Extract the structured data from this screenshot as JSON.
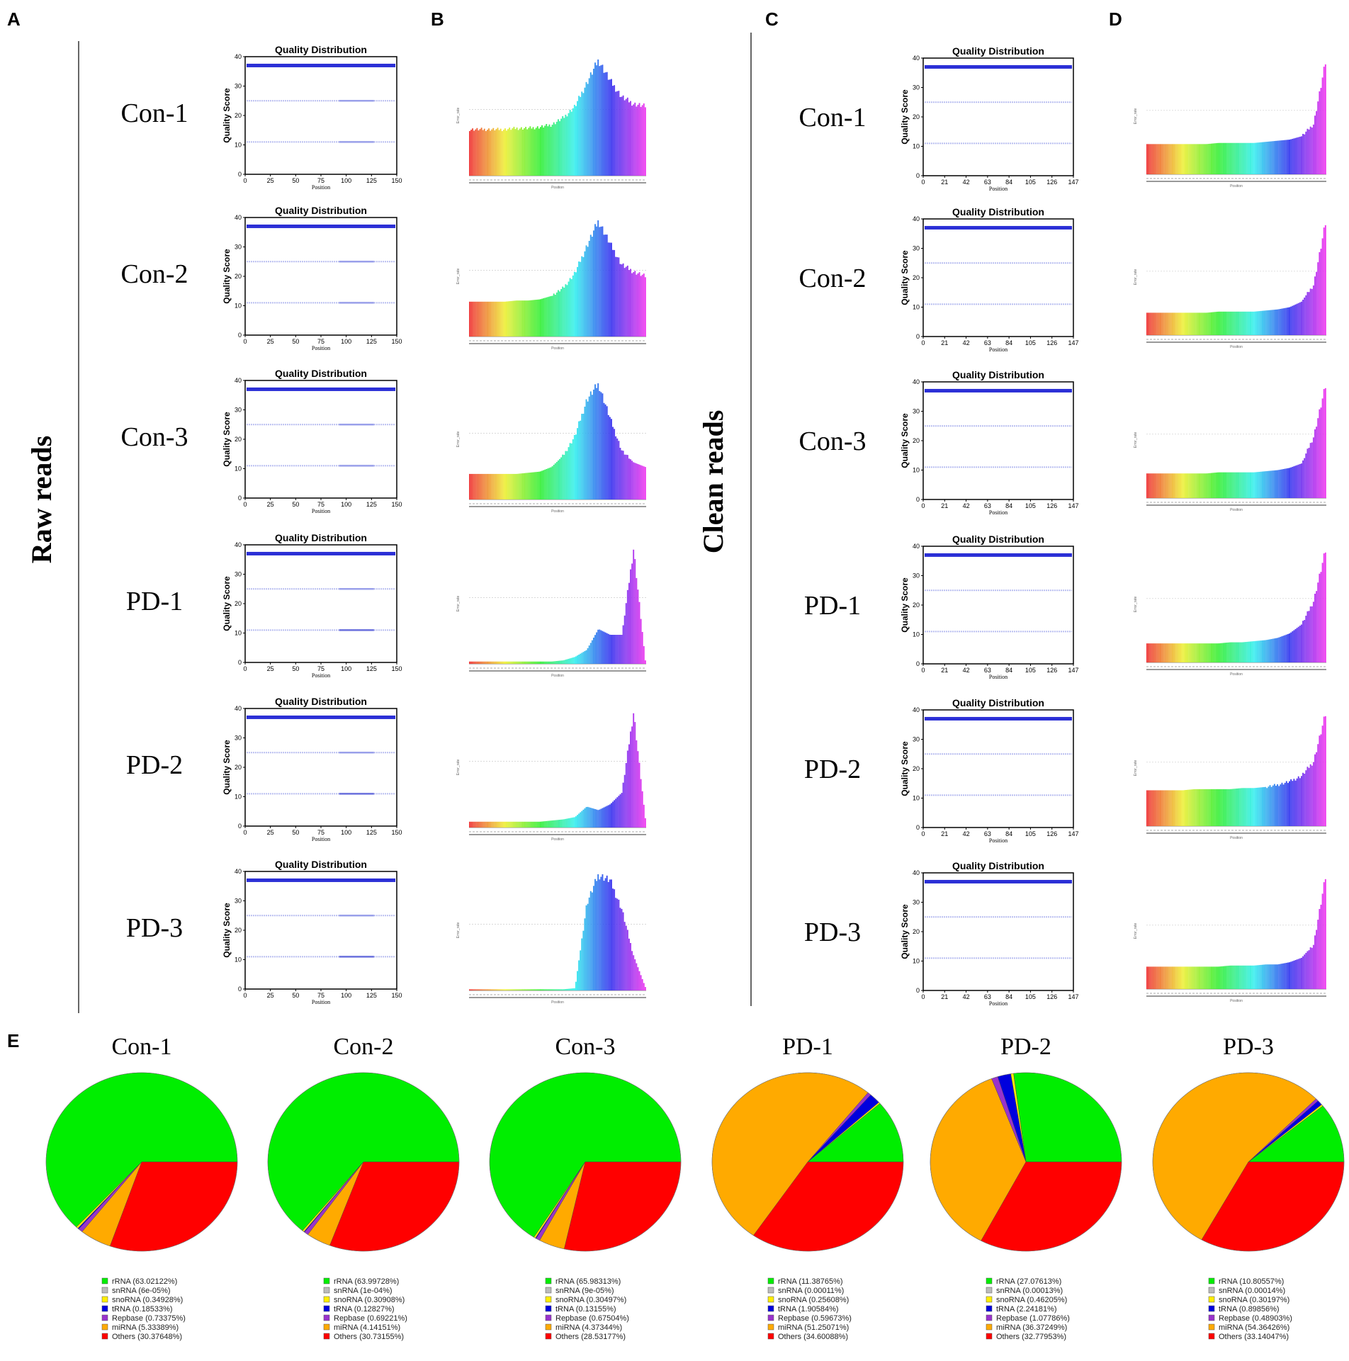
{
  "panel_letters": {
    "A": "A",
    "B": "B",
    "C": "C",
    "D": "D",
    "E": "E"
  },
  "side_labels": {
    "raw": "Raw reads",
    "clean": "Clean reads"
  },
  "samples": [
    "Con-1",
    "Con-2",
    "Con-3",
    "PD-1",
    "PD-2",
    "PD-3"
  ],
  "qd_common": {
    "title": "Quality Distribution",
    "ylabel": "Quality Score",
    "xlabel": "Position",
    "yticks": [
      "0",
      "10",
      "20",
      "30",
      "40"
    ],
    "raw_xticks": [
      "0",
      "25",
      "50",
      "75",
      "100",
      "125",
      "150"
    ],
    "clean_xticks": [
      "0",
      "21",
      "42",
      "63",
      "84",
      "105",
      "126",
      "147"
    ]
  },
  "err_common": {
    "ylabel": "Error_rate",
    "xlabel": "Position"
  },
  "chart_data": [
    {
      "type": "scatter",
      "panel": "A",
      "title": "Quality Distribution",
      "xlabel": "Position",
      "ylabel": "Quality Score",
      "xlim": [
        0,
        150
      ],
      "ylim": [
        0,
        40
      ],
      "samples": [
        "Con-1",
        "Con-2",
        "Con-3",
        "PD-1",
        "PD-2",
        "PD-3"
      ],
      "quality_bands": [
        37,
        25,
        11
      ]
    },
    {
      "type": "bar",
      "panel": "B",
      "xlabel": "Position",
      "ylabel": "Error_rate",
      "samples": [
        {
          "name": "Con-1",
          "profile": [
            0.4,
            0.4,
            0.4,
            0.4,
            0.41,
            0.41,
            0.42,
            0.44,
            0.5,
            0.6,
            0.8,
            1.0,
            0.82,
            0.68,
            0.62,
            0.6
          ]
        },
        {
          "name": "Con-2",
          "profile": [
            0.3,
            0.3,
            0.3,
            0.3,
            0.31,
            0.31,
            0.32,
            0.35,
            0.42,
            0.55,
            0.78,
            1.0,
            0.8,
            0.62,
            0.56,
            0.52
          ]
        },
        {
          "name": "Con-3",
          "profile": [
            0.22,
            0.22,
            0.22,
            0.22,
            0.22,
            0.23,
            0.24,
            0.28,
            0.38,
            0.55,
            0.86,
            1.0,
            0.7,
            0.42,
            0.32,
            0.28
          ]
        },
        {
          "name": "PD-1",
          "profile": [
            0.02,
            0.02,
            0.02,
            0.02,
            0.02,
            0.02,
            0.02,
            0.02,
            0.03,
            0.06,
            0.12,
            0.3,
            0.25,
            0.25,
            1.0,
            0.03
          ]
        },
        {
          "name": "PD-2",
          "profile": [
            0.05,
            0.05,
            0.05,
            0.05,
            0.05,
            0.05,
            0.05,
            0.06,
            0.07,
            0.09,
            0.18,
            0.15,
            0.2,
            0.3,
            1.0,
            0.08
          ]
        },
        {
          "name": "PD-3",
          "profile": [
            0.01,
            0.01,
            0.01,
            0.01,
            0.01,
            0.01,
            0.01,
            0.01,
            0.01,
            0.02,
            0.75,
            1.0,
            0.95,
            0.7,
            0.3,
            0.03
          ]
        }
      ]
    },
    {
      "type": "scatter",
      "panel": "C",
      "title": "Quality Distribution",
      "xlabel": "Position",
      "ylabel": "Quality Score",
      "xlim": [
        0,
        147
      ],
      "ylim": [
        0,
        40
      ],
      "samples": [
        "Con-1",
        "Con-2",
        "Con-3",
        "PD-1",
        "PD-2",
        "PD-3"
      ],
      "quality_bands": [
        37,
        25,
        11
      ]
    },
    {
      "type": "bar",
      "panel": "D",
      "xlabel": "Position",
      "ylabel": "Error_rate",
      "samples": [
        {
          "name": "Con-1",
          "profile": [
            0.27,
            0.27,
            0.27,
            0.27,
            0.27,
            0.27,
            0.28,
            0.28,
            0.28,
            0.28,
            0.29,
            0.3,
            0.31,
            0.34,
            0.45,
            1.0
          ]
        },
        {
          "name": "Con-2",
          "profile": [
            0.2,
            0.2,
            0.2,
            0.2,
            0.2,
            0.2,
            0.21,
            0.21,
            0.21,
            0.21,
            0.22,
            0.23,
            0.25,
            0.3,
            0.45,
            1.0
          ]
        },
        {
          "name": "Con-3",
          "profile": [
            0.22,
            0.22,
            0.22,
            0.22,
            0.22,
            0.22,
            0.23,
            0.23,
            0.23,
            0.23,
            0.24,
            0.25,
            0.27,
            0.31,
            0.55,
            1.0
          ]
        },
        {
          "name": "PD-1",
          "profile": [
            0.17,
            0.17,
            0.17,
            0.17,
            0.17,
            0.17,
            0.17,
            0.18,
            0.18,
            0.19,
            0.2,
            0.22,
            0.26,
            0.34,
            0.55,
            1.0
          ]
        },
        {
          "name": "PD-2",
          "profile": [
            0.32,
            0.32,
            0.32,
            0.32,
            0.33,
            0.33,
            0.33,
            0.33,
            0.34,
            0.34,
            0.35,
            0.37,
            0.4,
            0.45,
            0.58,
            1.0
          ]
        },
        {
          "name": "PD-3",
          "profile": [
            0.2,
            0.2,
            0.2,
            0.2,
            0.2,
            0.2,
            0.2,
            0.21,
            0.21,
            0.21,
            0.22,
            0.22,
            0.24,
            0.28,
            0.4,
            1.0
          ]
        }
      ]
    },
    {
      "type": "pie",
      "panel": "E",
      "categories": [
        "rRNA",
        "snRNA",
        "snoRNA",
        "tRNA",
        "Repbase",
        "miRNA",
        "Others"
      ],
      "colors": [
        "#00ee00",
        "#bbbbbb",
        "#ffee00",
        "#0000dd",
        "#9933cc",
        "#ffaa00",
        "#ff0000"
      ],
      "pies": [
        {
          "title": "Con-1",
          "values": [
            63.02122,
            6e-05,
            0.34928,
            0.18533,
            0.73375,
            5.33389,
            30.37648
          ],
          "legend": [
            "rRNA (63.02122%)",
            "snRNA (6e-05%)",
            "snoRNA (0.34928%)",
            "tRNA (0.18533%)",
            "Repbase (0.73375%)",
            "miRNA (5.33389%)",
            "Others (30.37648%)"
          ]
        },
        {
          "title": "Con-2",
          "values": [
            63.99728,
            0.0001,
            0.30908,
            0.12827,
            0.69221,
            4.14151,
            30.73155
          ],
          "legend": [
            "rRNA (63.99728%)",
            "snRNA (1e-04%)",
            "snoRNA (0.30908%)",
            "tRNA (0.12827%)",
            "Repbase (0.69221%)",
            "miRNA (4.14151%)",
            "Others (30.73155%)"
          ]
        },
        {
          "title": "Con-3",
          "values": [
            65.98313,
            9e-05,
            0.30497,
            0.13155,
            0.67504,
            4.37344,
            28.53177
          ],
          "legend": [
            "rRNA (65.98313%)",
            "snRNA (9e-05%)",
            "snoRNA (0.30497%)",
            "tRNA (0.13155%)",
            "Repbase (0.67504%)",
            "miRNA (4.37344%)",
            "Others (28.53177%)"
          ]
        },
        {
          "title": "PD-1",
          "values": [
            11.38765,
            0.00011,
            0.25608,
            1.90584,
            0.59673,
            51.25071,
            34.60088
          ],
          "legend": [
            "rRNA (11.38765%)",
            "snRNA (0.00011%)",
            "snoRNA (0.25608%)",
            "tRNA (1.90584%)",
            "Repbase (0.59673%)",
            "miRNA (51.25071%)",
            "Others (34.60088%)"
          ]
        },
        {
          "title": "PD-2",
          "values": [
            27.07613,
            0.00013,
            0.46205,
            2.24181,
            1.07786,
            36.37249,
            32.77953
          ],
          "legend": [
            "rRNA (27.07613%)",
            "snRNA (0.00013%)",
            "snoRNA (0.46205%)",
            "tRNA (2.24181%)",
            "Repbase (1.07786%)",
            "miRNA (36.37249%)",
            "Others (32.77953%)"
          ]
        },
        {
          "title": "PD-3",
          "values": [
            10.80557,
            0.00014,
            0.30197,
            0.89856,
            0.48903,
            54.36426,
            33.14047
          ],
          "legend": [
            "rRNA (10.80557%)",
            "snRNA (0.00014%)",
            "snoRNA (0.30197%)",
            "tRNA (0.89856%)",
            "Repbase (0.48903%)",
            "miRNA (54.36426%)",
            "Others (33.14047%)"
          ]
        }
      ]
    }
  ]
}
